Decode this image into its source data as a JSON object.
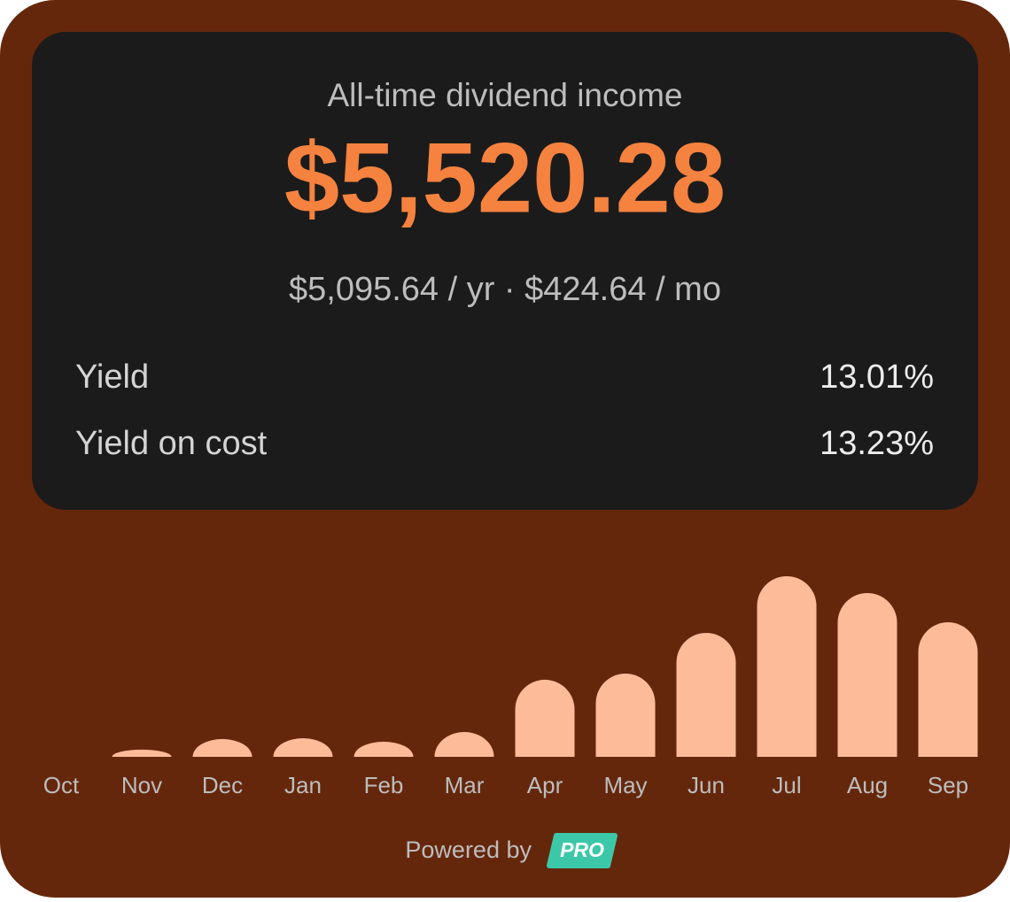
{
  "header": {
    "title": "All-time dividend income",
    "amount": "$5,520.28",
    "subline": "$5,095.64 / yr · $424.64 / mo"
  },
  "stats": [
    {
      "label": "Yield",
      "value": "13.01%"
    },
    {
      "label": "Yield on cost",
      "value": "13.23%"
    }
  ],
  "chart_data": {
    "type": "bar",
    "categories": [
      "Oct",
      "Nov",
      "Dec",
      "Jan",
      "Feb",
      "Mar",
      "Apr",
      "May",
      "Jun",
      "Jul",
      "Aug",
      "Sep"
    ],
    "values": [
      0,
      43,
      107,
      112,
      91,
      149,
      464,
      501,
      746,
      1087,
      986,
      810
    ],
    "color": "#fdbb9a"
  },
  "footer": {
    "text": "Powered by",
    "badge": "PRO"
  }
}
